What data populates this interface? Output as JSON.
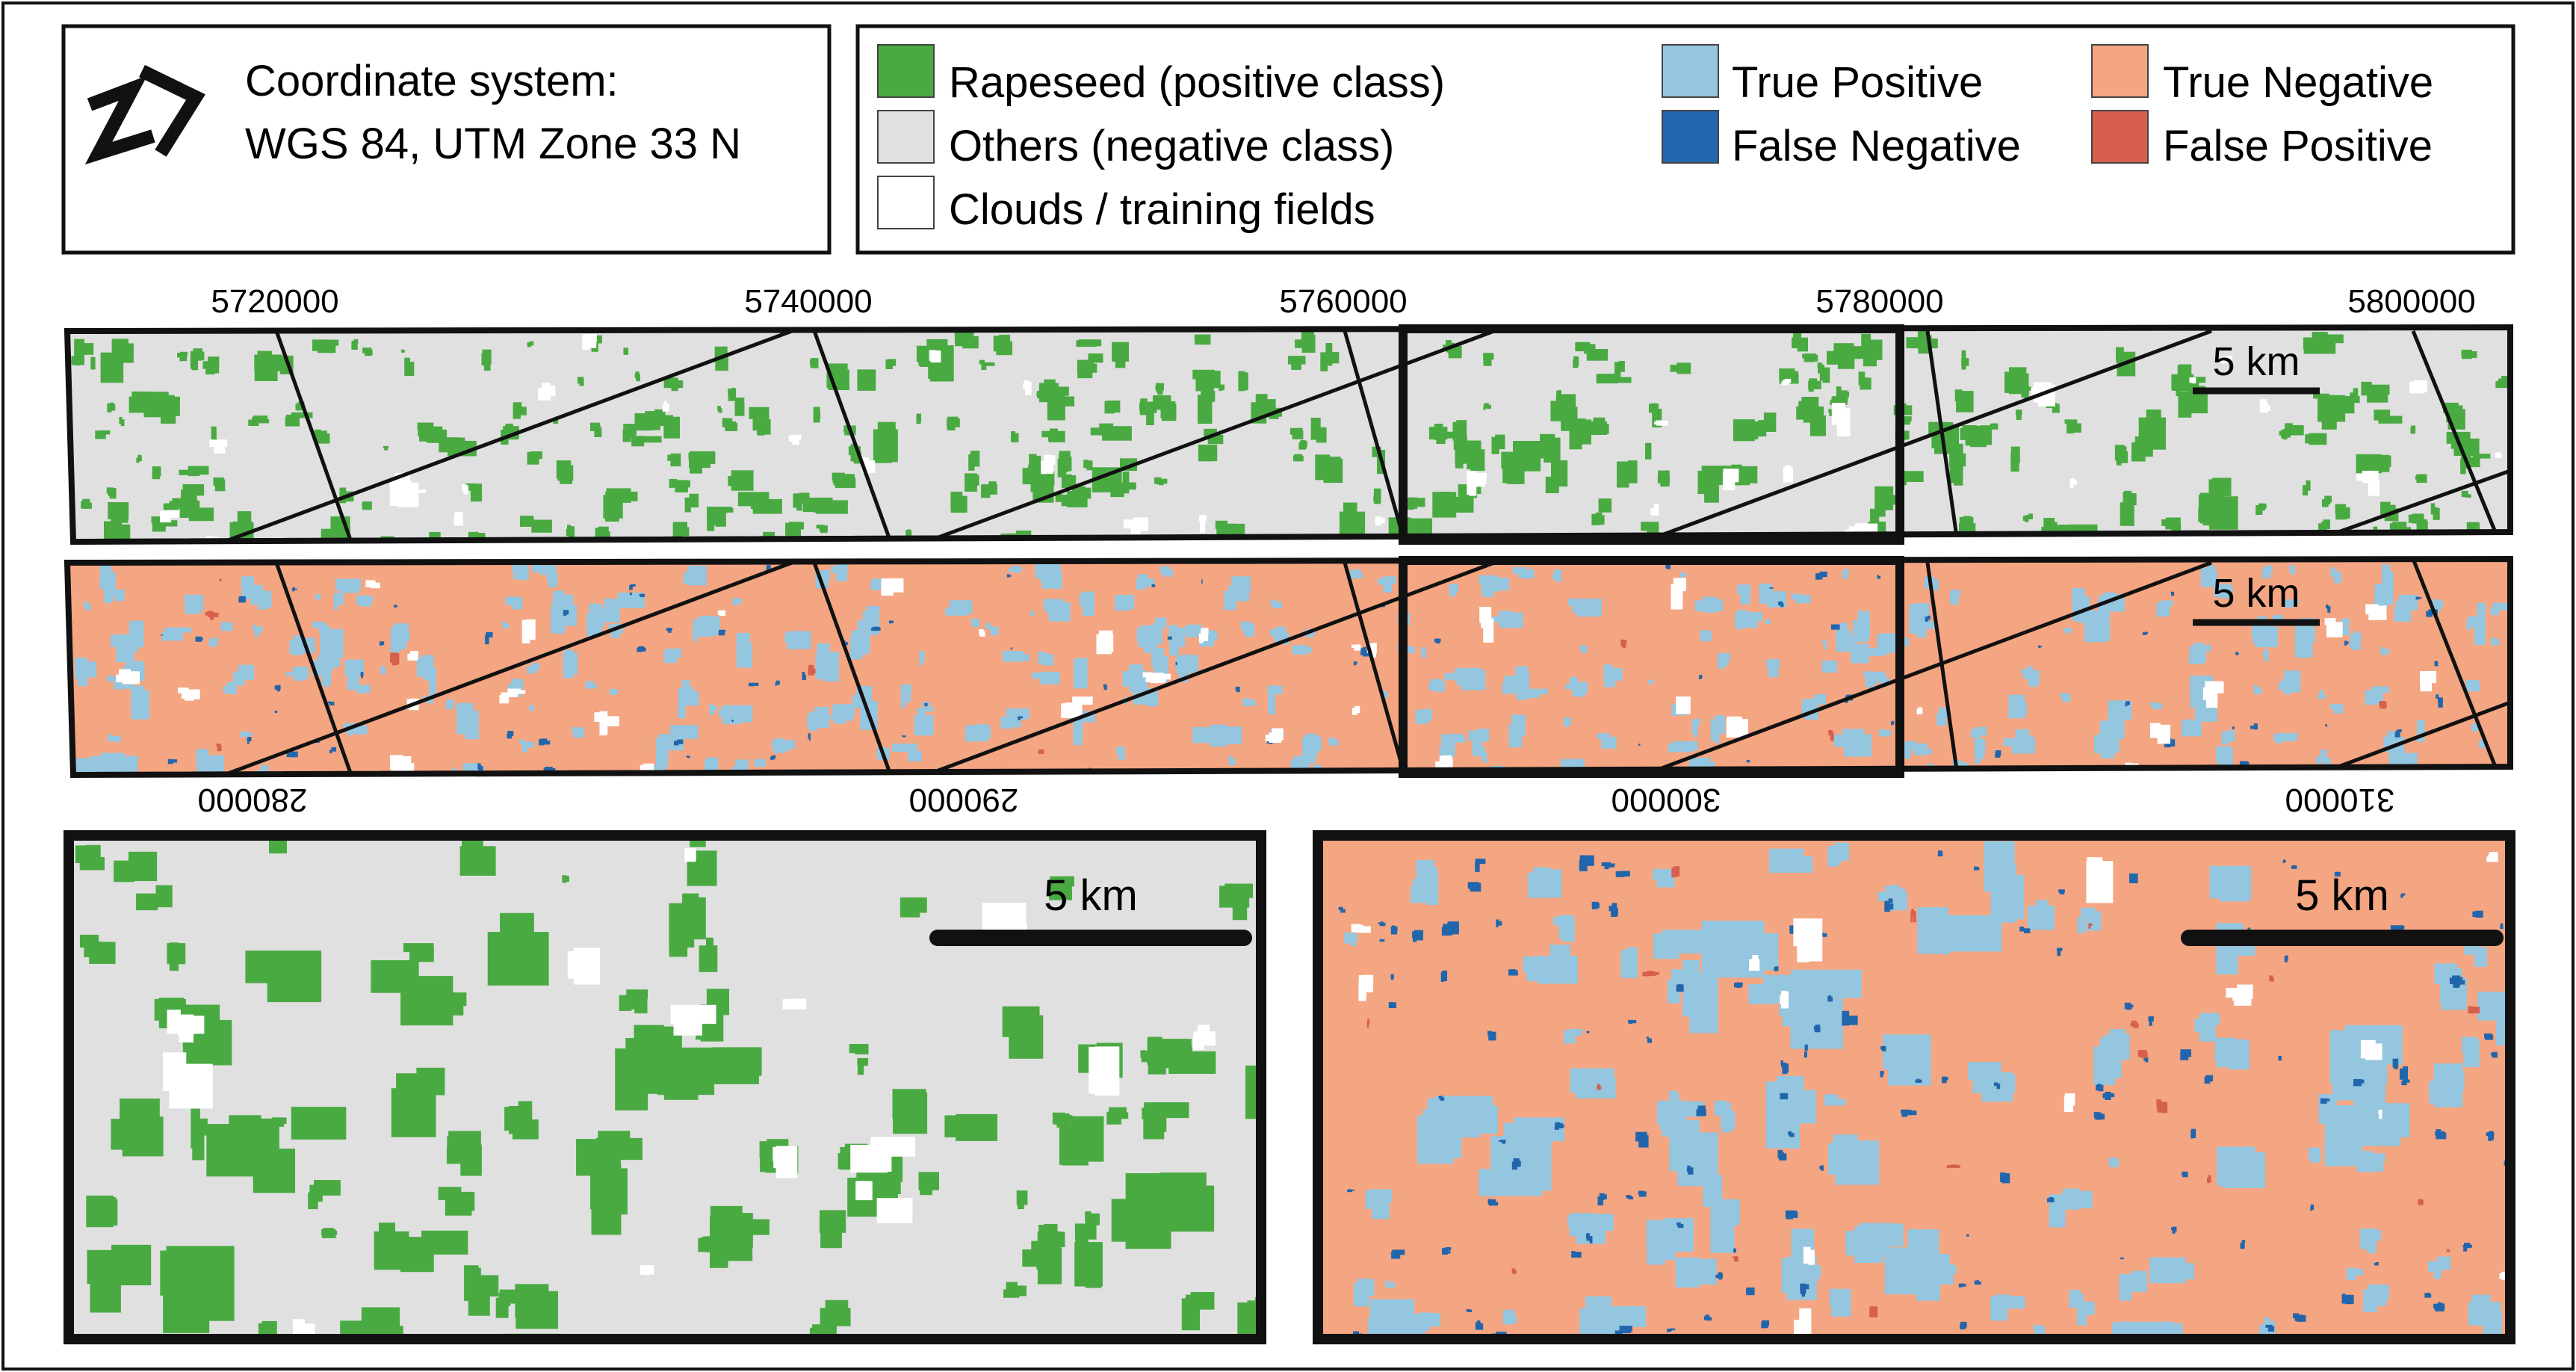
{
  "coordinate_box": {
    "line1": "Coordinate system:",
    "line2": "WGS 84, UTM Zone 33 N",
    "icon": "north-arrow-icon"
  },
  "legend": {
    "rapeseed": "Rapeseed (positive class)",
    "others": "Others (negative class)",
    "clouds": "Clouds / training fields",
    "true_positive": "True Positive",
    "false_negative": "False Negative",
    "true_negative": "True Negative",
    "false_positive": "False Positive"
  },
  "colors": {
    "rapeseed": "#4aaa42",
    "others": "#e0e0e0",
    "clouds": "#ffffff",
    "true_positive": "#94c6e0",
    "false_negative": "#2166ac",
    "true_negative": "#f4a582",
    "false_positive": "#d6604d",
    "frame": "#111111"
  },
  "axis": {
    "top_ticks": [
      "5720000",
      "5740000",
      "5760000",
      "5780000",
      "5800000"
    ],
    "bottom_ticks": [
      "280000",
      "290000",
      "300000",
      "310000"
    ]
  },
  "scalebars": {
    "strip_class": "5 km",
    "strip_error": "5 km",
    "zoom_class": "5 km",
    "zoom_error": "5 km"
  }
}
